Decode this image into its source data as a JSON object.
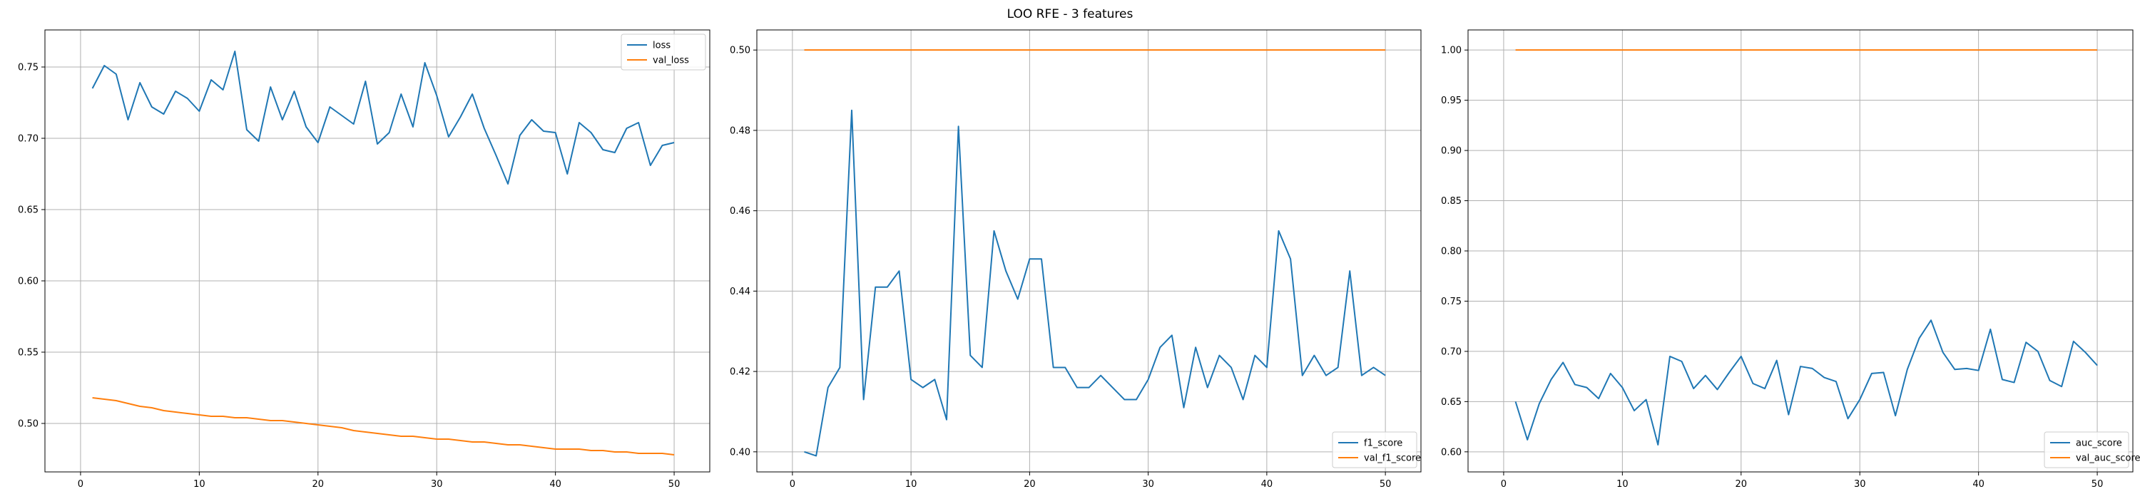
{
  "figure": {
    "title": "LOO RFE - 3 features"
  },
  "chart_data": [
    {
      "type": "line",
      "title": "",
      "xlabel": "",
      "ylabel": "",
      "xlim": [
        -3,
        53
      ],
      "ylim": [
        0.466,
        0.776
      ],
      "xticks": [
        0,
        10,
        20,
        30,
        40,
        50
      ],
      "yticks": [
        0.5,
        0.55,
        0.6,
        0.65,
        0.7,
        0.75
      ],
      "ytick_labels": [
        "0.50",
        "0.55",
        "0.60",
        "0.65",
        "0.70",
        "0.75"
      ],
      "grid": true,
      "legend": "top-right",
      "x": [
        1,
        2,
        3,
        4,
        5,
        6,
        7,
        8,
        9,
        10,
        11,
        12,
        13,
        14,
        15,
        16,
        17,
        18,
        19,
        20,
        21,
        22,
        23,
        24,
        25,
        26,
        27,
        28,
        29,
        30,
        31,
        32,
        33,
        34,
        35,
        36,
        37,
        38,
        39,
        40,
        41,
        42,
        43,
        44,
        45,
        46,
        47,
        48,
        49,
        50
      ],
      "series": [
        {
          "name": "loss",
          "color": "#1f77b4",
          "values": [
            0.735,
            0.751,
            0.745,
            0.713,
            0.739,
            0.722,
            0.717,
            0.733,
            0.728,
            0.719,
            0.741,
            0.734,
            0.761,
            0.706,
            0.698,
            0.736,
            0.713,
            0.733,
            0.708,
            0.697,
            0.722,
            0.716,
            0.71,
            0.74,
            0.696,
            0.704,
            0.731,
            0.708,
            0.753,
            0.73,
            0.701,
            0.715,
            0.731,
            0.707,
            0.688,
            0.668,
            0.702,
            0.713,
            0.705,
            0.704,
            0.675,
            0.711,
            0.704,
            0.692,
            0.69,
            0.707,
            0.711,
            0.681,
            0.695,
            0.697
          ]
        },
        {
          "name": "val_loss",
          "color": "#ff7f0e",
          "values": [
            0.518,
            0.517,
            0.516,
            0.514,
            0.512,
            0.511,
            0.509,
            0.508,
            0.507,
            0.506,
            0.505,
            0.505,
            0.504,
            0.504,
            0.503,
            0.502,
            0.502,
            0.501,
            0.5,
            0.499,
            0.498,
            0.497,
            0.495,
            0.494,
            0.493,
            0.492,
            0.491,
            0.491,
            0.49,
            0.489,
            0.489,
            0.488,
            0.487,
            0.487,
            0.486,
            0.485,
            0.485,
            0.484,
            0.483,
            0.482,
            0.482,
            0.482,
            0.481,
            0.481,
            0.48,
            0.48,
            0.479,
            0.479,
            0.479,
            0.478
          ]
        }
      ]
    },
    {
      "type": "line",
      "title": "",
      "xlabel": "",
      "ylabel": "",
      "xlim": [
        -3,
        53
      ],
      "ylim": [
        0.395,
        0.505
      ],
      "xticks": [
        0,
        10,
        20,
        30,
        40,
        50
      ],
      "yticks": [
        0.4,
        0.42,
        0.44,
        0.46,
        0.48,
        0.5
      ],
      "ytick_labels": [
        "0.40",
        "0.42",
        "0.44",
        "0.46",
        "0.48",
        "0.50"
      ],
      "grid": true,
      "legend": "bottom-right",
      "x": [
        1,
        2,
        3,
        4,
        5,
        6,
        7,
        8,
        9,
        10,
        11,
        12,
        13,
        14,
        15,
        16,
        17,
        18,
        19,
        20,
        21,
        22,
        23,
        24,
        25,
        26,
        27,
        28,
        29,
        30,
        31,
        32,
        33,
        34,
        35,
        36,
        37,
        38,
        39,
        40,
        41,
        42,
        43,
        44,
        45,
        46,
        47,
        48,
        49,
        50
      ],
      "series": [
        {
          "name": "f1_score",
          "color": "#1f77b4",
          "values": [
            0.4,
            0.399,
            0.416,
            0.421,
            0.485,
            0.413,
            0.441,
            0.441,
            0.445,
            0.418,
            0.416,
            0.418,
            0.408,
            0.481,
            0.424,
            0.421,
            0.455,
            0.445,
            0.438,
            0.448,
            0.448,
            0.421,
            0.421,
            0.416,
            0.416,
            0.419,
            0.416,
            0.413,
            0.413,
            0.418,
            0.426,
            0.429,
            0.411,
            0.426,
            0.416,
            0.424,
            0.421,
            0.413,
            0.424,
            0.421,
            0.455,
            0.448,
            0.419,
            0.424,
            0.419,
            0.421,
            0.445,
            0.419,
            0.421,
            0.419
          ]
        },
        {
          "name": "val_f1_score",
          "color": "#ff7f0e",
          "values": [
            0.5,
            0.5,
            0.5,
            0.5,
            0.5,
            0.5,
            0.5,
            0.5,
            0.5,
            0.5,
            0.5,
            0.5,
            0.5,
            0.5,
            0.5,
            0.5,
            0.5,
            0.5,
            0.5,
            0.5,
            0.5,
            0.5,
            0.5,
            0.5,
            0.5,
            0.5,
            0.5,
            0.5,
            0.5,
            0.5,
            0.5,
            0.5,
            0.5,
            0.5,
            0.5,
            0.5,
            0.5,
            0.5,
            0.5,
            0.5,
            0.5,
            0.5,
            0.5,
            0.5,
            0.5,
            0.5,
            0.5,
            0.5,
            0.5,
            0.5
          ]
        }
      ]
    },
    {
      "type": "line",
      "title": "",
      "xlabel": "",
      "ylabel": "",
      "xlim": [
        -3,
        53
      ],
      "ylim": [
        0.58,
        1.02
      ],
      "xticks": [
        0,
        10,
        20,
        30,
        40,
        50
      ],
      "yticks": [
        0.6,
        0.65,
        0.7,
        0.75,
        0.8,
        0.85,
        0.9,
        0.95,
        1.0
      ],
      "ytick_labels": [
        "0.60",
        "0.65",
        "0.70",
        "0.75",
        "0.80",
        "0.85",
        "0.90",
        "0.95",
        "1.00"
      ],
      "grid": true,
      "legend": "bottom-right",
      "x": [
        1,
        2,
        3,
        4,
        5,
        6,
        7,
        8,
        9,
        10,
        11,
        12,
        13,
        14,
        15,
        16,
        17,
        18,
        19,
        20,
        21,
        22,
        23,
        24,
        25,
        26,
        27,
        28,
        29,
        30,
        31,
        32,
        33,
        34,
        35,
        36,
        37,
        38,
        39,
        40,
        41,
        42,
        43,
        44,
        45,
        46,
        47,
        48,
        49,
        50
      ],
      "series": [
        {
          "name": "auc_score",
          "color": "#1f77b4",
          "values": [
            0.65,
            0.612,
            0.648,
            0.672,
            0.689,
            0.667,
            0.664,
            0.653,
            0.678,
            0.664,
            0.641,
            0.652,
            0.607,
            0.695,
            0.69,
            0.663,
            0.676,
            0.662,
            0.679,
            0.695,
            0.668,
            0.663,
            0.691,
            0.637,
            0.685,
            0.683,
            0.674,
            0.67,
            0.633,
            0.652,
            0.678,
            0.679,
            0.636,
            0.682,
            0.713,
            0.731,
            0.699,
            0.682,
            0.683,
            0.681,
            0.722,
            0.672,
            0.669,
            0.709,
            0.7,
            0.671,
            0.665,
            0.71,
            0.699,
            0.686
          ]
        },
        {
          "name": "val_auc_score",
          "color": "#ff7f0e",
          "values": [
            1.0,
            1.0,
            1.0,
            1.0,
            1.0,
            1.0,
            1.0,
            1.0,
            1.0,
            1.0,
            1.0,
            1.0,
            1.0,
            1.0,
            1.0,
            1.0,
            1.0,
            1.0,
            1.0,
            1.0,
            1.0,
            1.0,
            1.0,
            1.0,
            1.0,
            1.0,
            1.0,
            1.0,
            1.0,
            1.0,
            1.0,
            1.0,
            1.0,
            1.0,
            1.0,
            1.0,
            1.0,
            1.0,
            1.0,
            1.0,
            1.0,
            1.0,
            1.0,
            1.0,
            1.0,
            1.0,
            1.0,
            1.0,
            1.0,
            1.0
          ]
        }
      ]
    }
  ]
}
